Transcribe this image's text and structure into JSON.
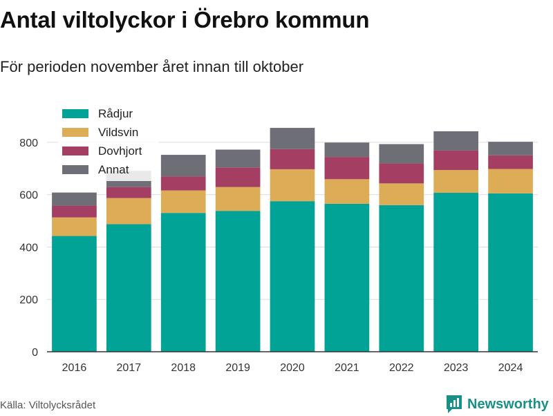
{
  "header": {
    "title": "Antal viltolyckor i Örebro kommun",
    "subtitle": "För perioden november året innan till oktober"
  },
  "footer": {
    "source": "Källa: Viltolycksrådet",
    "brand": "Newsworthy",
    "brand_icon": "newsworthy-logo-icon"
  },
  "colors": {
    "Rådjur": "#00a396",
    "Vildsvin": "#ddac57",
    "Dovhjort": "#a43f63",
    "Annat": "#6e6e76",
    "grid": "#dcdcdc",
    "axis": "#333333",
    "brand": "#1a8f86"
  },
  "chart_data": {
    "type": "bar",
    "stacked": true,
    "categories": [
      "2016",
      "2017",
      "2018",
      "2019",
      "2020",
      "2021",
      "2022",
      "2023",
      "2024"
    ],
    "series": [
      {
        "name": "Rådjur",
        "values": [
          442,
          487,
          530,
          538,
          575,
          565,
          560,
          607,
          605
        ]
      },
      {
        "name": "Vildsvin",
        "values": [
          71,
          100,
          86,
          91,
          122,
          94,
          83,
          87,
          93
        ]
      },
      {
        "name": "Dovhjort",
        "values": [
          45,
          42,
          54,
          75,
          77,
          85,
          76,
          75,
          52
        ]
      },
      {
        "name": "Annat",
        "values": [
          50,
          62,
          82,
          68,
          81,
          55,
          74,
          73,
          52
        ]
      }
    ],
    "ylim": [
      0,
      900
    ],
    "yticks": [
      0,
      200,
      400,
      600,
      800
    ],
    "grid": true,
    "legend_position": "top-left"
  }
}
